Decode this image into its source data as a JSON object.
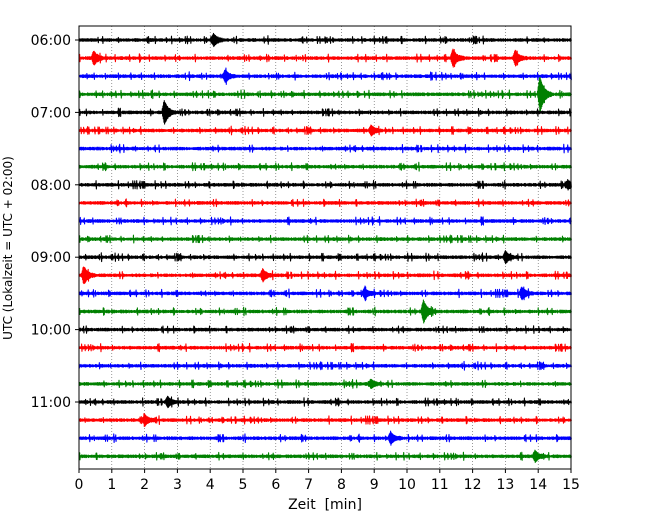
{
  "chart_data": {
    "type": "line",
    "xlabel": "Zeit  [min]",
    "ylabel": "UTC (Lokalzeit = UTC + 02:00)",
    "xlim": [
      0,
      15
    ],
    "x_ticks": [
      0,
      1,
      2,
      3,
      4,
      5,
      6,
      7,
      8,
      9,
      10,
      11,
      12,
      13,
      14,
      15
    ],
    "y_tick_labels": [
      "06:00",
      "07:00",
      "08:00",
      "09:00",
      "10:00",
      "11:00"
    ],
    "grid": "vertical dotted lines at each minute",
    "trace_minutes_per_line": 15,
    "trace_colors_cycle": [
      "#000000",
      "#ff0000",
      "#0000ff",
      "#008000"
    ],
    "traces": [
      {
        "start": "06:00",
        "color": "#000000",
        "events": [
          {
            "x": 4.1,
            "amp": 0.7
          }
        ]
      },
      {
        "start": "06:15",
        "color": "#ff0000",
        "events": [
          {
            "x": 0.45,
            "amp": 0.8
          },
          {
            "x": 11.4,
            "amp": 1.0
          },
          {
            "x": 13.3,
            "amp": 0.9
          }
        ]
      },
      {
        "start": "06:30",
        "color": "#0000ff",
        "events": [
          {
            "x": 4.45,
            "amp": 0.7
          }
        ]
      },
      {
        "start": "06:45",
        "color": "#008000",
        "events": [
          {
            "x": 14.05,
            "amp": 2.2
          }
        ]
      },
      {
        "start": "07:00",
        "color": "#000000",
        "events": [
          {
            "x": 2.6,
            "amp": 1.4
          }
        ]
      },
      {
        "start": "07:15",
        "color": "#ff0000",
        "events": [
          {
            "x": 8.9,
            "amp": 0.6
          }
        ]
      },
      {
        "start": "07:30",
        "color": "#0000ff",
        "events": []
      },
      {
        "start": "07:45",
        "color": "#008000",
        "events": []
      },
      {
        "start": "08:00",
        "color": "#000000",
        "events": [
          {
            "x": 14.9,
            "amp": 0.5
          }
        ]
      },
      {
        "start": "08:15",
        "color": "#ff0000",
        "events": []
      },
      {
        "start": "08:30",
        "color": "#0000ff",
        "events": []
      },
      {
        "start": "08:45",
        "color": "#008000",
        "events": []
      },
      {
        "start": "09:00",
        "color": "#000000",
        "events": [
          {
            "x": 13.0,
            "amp": 0.7
          }
        ]
      },
      {
        "start": "09:15",
        "color": "#ff0000",
        "events": [
          {
            "x": 0.15,
            "amp": 1.0
          },
          {
            "x": 5.6,
            "amp": 0.7
          }
        ]
      },
      {
        "start": "09:30",
        "color": "#0000ff",
        "events": [
          {
            "x": 8.7,
            "amp": 0.6
          },
          {
            "x": 13.5,
            "amp": 0.7
          }
        ]
      },
      {
        "start": "09:45",
        "color": "#008000",
        "events": [
          {
            "x": 10.5,
            "amp": 1.3
          }
        ]
      },
      {
        "start": "10:00",
        "color": "#000000",
        "events": []
      },
      {
        "start": "10:15",
        "color": "#ff0000",
        "events": []
      },
      {
        "start": "10:30",
        "color": "#0000ff",
        "events": []
      },
      {
        "start": "10:45",
        "color": "#008000",
        "events": [
          {
            "x": 8.9,
            "amp": 0.5
          }
        ]
      },
      {
        "start": "11:00",
        "color": "#000000",
        "events": [
          {
            "x": 2.7,
            "amp": 0.6
          }
        ]
      },
      {
        "start": "11:15",
        "color": "#ff0000",
        "events": [
          {
            "x": 2.0,
            "amp": 0.6
          }
        ]
      },
      {
        "start": "11:30",
        "color": "#0000ff",
        "events": [
          {
            "x": 9.5,
            "amp": 0.7
          }
        ]
      },
      {
        "start": "11:45",
        "color": "#008000",
        "events": [
          {
            "x": 13.9,
            "amp": 0.6
          }
        ]
      }
    ]
  }
}
